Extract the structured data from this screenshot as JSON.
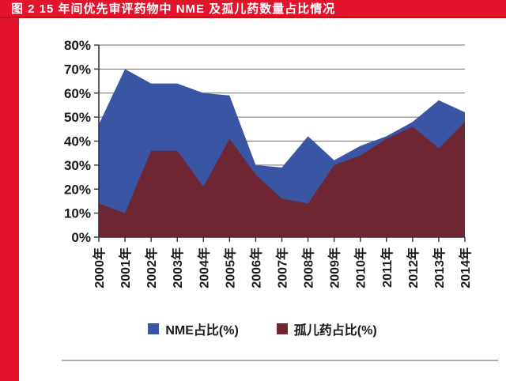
{
  "header": {
    "title": "图 2  15 年间优先审评药物中 NME 及孤儿药数量占比情况",
    "bar_color": "#e2132b",
    "text_color": "#ffffff"
  },
  "chart_data": {
    "type": "area",
    "title": "15 年间优先审评药物中 NME 及孤儿药数量占比情况",
    "categories": [
      "2000年",
      "2001年",
      "2002年",
      "2003年",
      "2004年",
      "2005年",
      "2006年",
      "2007年",
      "2008年",
      "2009年",
      "2010年",
      "2011年",
      "2012年",
      "2013年",
      "2014年"
    ],
    "series": [
      {
        "name": "NME占比(%)",
        "color": "#3a55a3",
        "values": [
          47,
          70,
          64,
          64,
          60,
          59,
          30,
          29,
          42,
          32,
          38,
          42,
          48,
          57,
          52
        ]
      },
      {
        "name": "孤儿药占比(%)",
        "color": "#6f2633",
        "values": [
          14,
          10,
          36,
          36,
          21,
          41,
          26,
          16,
          14,
          30,
          34,
          41,
          46,
          37,
          48
        ]
      }
    ],
    "xlabel": "",
    "ylabel": "",
    "ytick_labels": [
      "0%",
      "10%",
      "20%",
      "30%",
      "40%",
      "50%",
      "60%",
      "70%",
      "80%"
    ],
    "ylim": [
      0,
      80
    ],
    "ytick_step": 10,
    "grid": true,
    "gridline_color": "#6b6b6b",
    "axis_color": "#333333",
    "tick_label_color": "#1a1a1a",
    "legend_position": "bottom"
  },
  "footer": {
    "divider_color": "#afafaf"
  }
}
